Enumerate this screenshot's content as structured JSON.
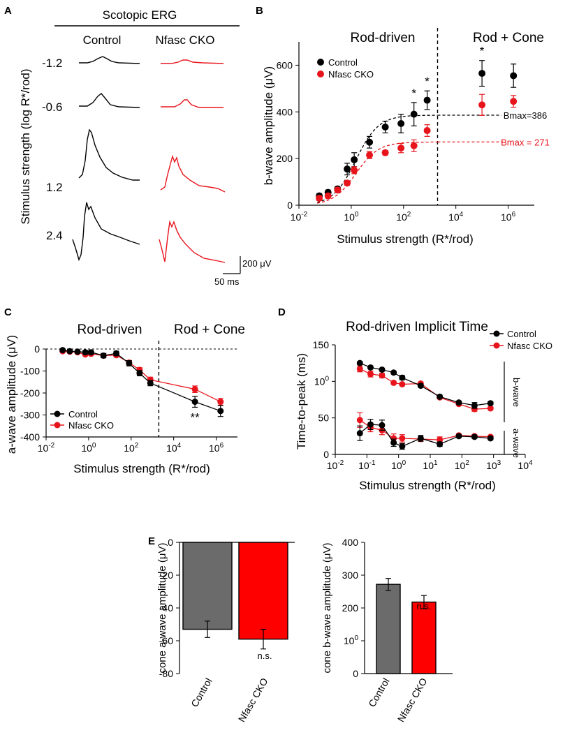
{
  "panel_letters": [
    "A",
    "B",
    "C",
    "D",
    "E"
  ],
  "colors": {
    "control": "#000000",
    "cko": "#e8141c",
    "bar_control": "#6b6b6b",
    "bar_cko": "#ff0000"
  },
  "chart_data": [
    {
      "panel": "A",
      "type": "line",
      "title": "Scotopic ERG",
      "columns": [
        "Control",
        "Nfasc CKO"
      ],
      "ylabel": "Stimulus strength (log R*/rod)",
      "rows": [
        "-1.2",
        "-0.6",
        "1.2",
        "2.4"
      ],
      "scale": {
        "amplitude": "200 μV",
        "time": "50 ms"
      }
    },
    {
      "panel": "B",
      "type": "scatter",
      "xscale": "log",
      "xlim": [
        0.01,
        10000000
      ],
      "ylim": [
        0,
        700
      ],
      "xticks": [
        "10-2",
        "100",
        "102",
        "104",
        "106"
      ],
      "yticks": [
        "0",
        "200",
        "400",
        "600"
      ],
      "xlabel": "Stimulus strength (R*/rod)",
      "ylabel": "b-wave amplitude (μV)",
      "regions": [
        {
          "label": "Rod-driven"
        },
        {
          "label": "Rod + Cone"
        }
      ],
      "divider_x": 2000,
      "legend": [
        "Control",
        "Nfasc CKO"
      ],
      "x": [
        0.06,
        0.13,
        0.3,
        0.7,
        1.3,
        5,
        20,
        80,
        250,
        800,
        100000,
        1600000
      ],
      "series": [
        {
          "name": "Control",
          "values": [
            40,
            55,
            70,
            155,
            195,
            270,
            335,
            350,
            390,
            450,
            565,
            555
          ],
          "err": [
            10,
            10,
            10,
            25,
            30,
            25,
            25,
            40,
            50,
            40,
            55,
            50
          ]
        },
        {
          "name": "Nfasc CKO",
          "values": [
            30,
            40,
            65,
            95,
            150,
            215,
            225,
            245,
            255,
            320,
            430,
            445
          ],
          "err": [
            10,
            10,
            10,
            10,
            15,
            15,
            10,
            20,
            25,
            25,
            45,
            25
          ]
        }
      ],
      "fits": [
        {
          "name": "Control",
          "bmax": 386,
          "k": 1.5,
          "label": "Bmax=386"
        },
        {
          "name": "Nfasc CKO",
          "bmax": 271,
          "k": 1.5,
          "label": "Bmax = 271"
        }
      ],
      "significance": [
        {
          "x": 250,
          "label": "*"
        },
        {
          "x": 800,
          "label": "*"
        },
        {
          "x": 100000,
          "label": "*"
        }
      ]
    },
    {
      "panel": "C",
      "type": "line",
      "xscale": "log",
      "xlim": [
        0.01,
        10000000
      ],
      "ylim": [
        -400,
        0
      ],
      "xticks": [
        "10-2",
        "100",
        "102",
        "104",
        "106"
      ],
      "yticks": [
        "0",
        "-100",
        "-200",
        "-300",
        "-400"
      ],
      "xlabel": "Stimulus strength (R*/rod)",
      "ylabel": "a-wave amplitude (μV)",
      "regions": [
        {
          "label": "Rod-driven"
        },
        {
          "label": "Rod + Cone"
        }
      ],
      "divider_x": 2000,
      "legend": [
        "Control",
        "Nfasc CKO"
      ],
      "x": [
        0.06,
        0.13,
        0.3,
        0.7,
        1.3,
        5,
        20,
        80,
        250,
        800,
        100000,
        1600000
      ],
      "series": [
        {
          "name": "Control",
          "values": [
            -5,
            -10,
            -12,
            -15,
            -15,
            -30,
            -20,
            -65,
            -110,
            -155,
            -240,
            -282
          ],
          "err": [
            5,
            5,
            5,
            8,
            8,
            10,
            10,
            12,
            12,
            12,
            25,
            25
          ]
        },
        {
          "name": "Nfasc CKO",
          "values": [
            -10,
            -12,
            -15,
            -25,
            -22,
            -30,
            -28,
            -62,
            -95,
            -140,
            -183,
            -240
          ],
          "err": [
            5,
            5,
            5,
            5,
            5,
            8,
            8,
            10,
            10,
            12,
            15,
            15
          ]
        }
      ],
      "significance": [
        {
          "x": 100000,
          "label": "**"
        }
      ]
    },
    {
      "panel": "D",
      "type": "line",
      "title": "Rod-driven Implicit Time",
      "xscale": "log",
      "xlim": [
        0.01,
        10000
      ],
      "ylim": [
        0,
        150
      ],
      "xticks": [
        "10-2",
        "10-1",
        "100",
        "101",
        "102",
        "103",
        "104"
      ],
      "yticks": [
        "0",
        "50",
        "100",
        "150"
      ],
      "xlabel": "Stimulus strength (R*/rod)",
      "ylabel": "Time-to-peak (ms)",
      "legend": [
        "Control",
        "Nfasc CKO"
      ],
      "group_labels": [
        "b-wave",
        "a-wave"
      ],
      "x": [
        0.06,
        0.13,
        0.3,
        0.7,
        1.3,
        5,
        20,
        80,
        250,
        800
      ],
      "series": [
        {
          "name": "Control b-wave",
          "values": [
            125,
            119,
            116,
            112,
            105,
            94,
            79,
            71,
            67,
            70
          ],
          "err": [
            2,
            2,
            2,
            2,
            3,
            2,
            2,
            2,
            4,
            2
          ]
        },
        {
          "name": "Nfasc CKO b-wave",
          "values": [
            117,
            110,
            108,
            98,
            96,
            97,
            78,
            69,
            62,
            63
          ],
          "err": [
            4,
            4,
            3,
            2,
            2,
            2,
            2,
            2,
            3,
            2
          ]
        },
        {
          "name": "Control a-wave",
          "values": [
            29,
            41,
            40,
            16,
            11,
            22,
            14,
            25,
            24,
            22
          ],
          "err": [
            10,
            7,
            7,
            5,
            4,
            4,
            3,
            2,
            2,
            2
          ]
        },
        {
          "name": "Nfasc CKO a-wave",
          "values": [
            47,
            37,
            33,
            22,
            22,
            21,
            20,
            26,
            25,
            24
          ],
          "err": [
            10,
            6,
            6,
            6,
            5,
            3,
            4,
            2,
            2,
            2
          ]
        }
      ]
    },
    {
      "panel": "E",
      "type": "bar",
      "categories": [
        "Control",
        "Nfasc CKO"
      ],
      "ylabel": "cone a-wave amplitude (μV)",
      "ylim": [
        -80,
        0
      ],
      "yticks": [
        "0",
        "-20",
        "-40",
        "-60",
        "-80"
      ],
      "values": [
        -53,
        -59
      ],
      "err": [
        5,
        6
      ],
      "annotation": "n.s."
    },
    {
      "panel": "E",
      "type": "bar",
      "categories": [
        "Control",
        "Nfasc CKO"
      ],
      "ylabel": "cone b-wave amplitude (μV)",
      "ylim": [
        0,
        400
      ],
      "yticks": [
        "0",
        "100",
        "200",
        "300",
        "400"
      ],
      "values": [
        272,
        218
      ],
      "err": [
        18,
        20
      ],
      "annotation": "n.s."
    }
  ]
}
